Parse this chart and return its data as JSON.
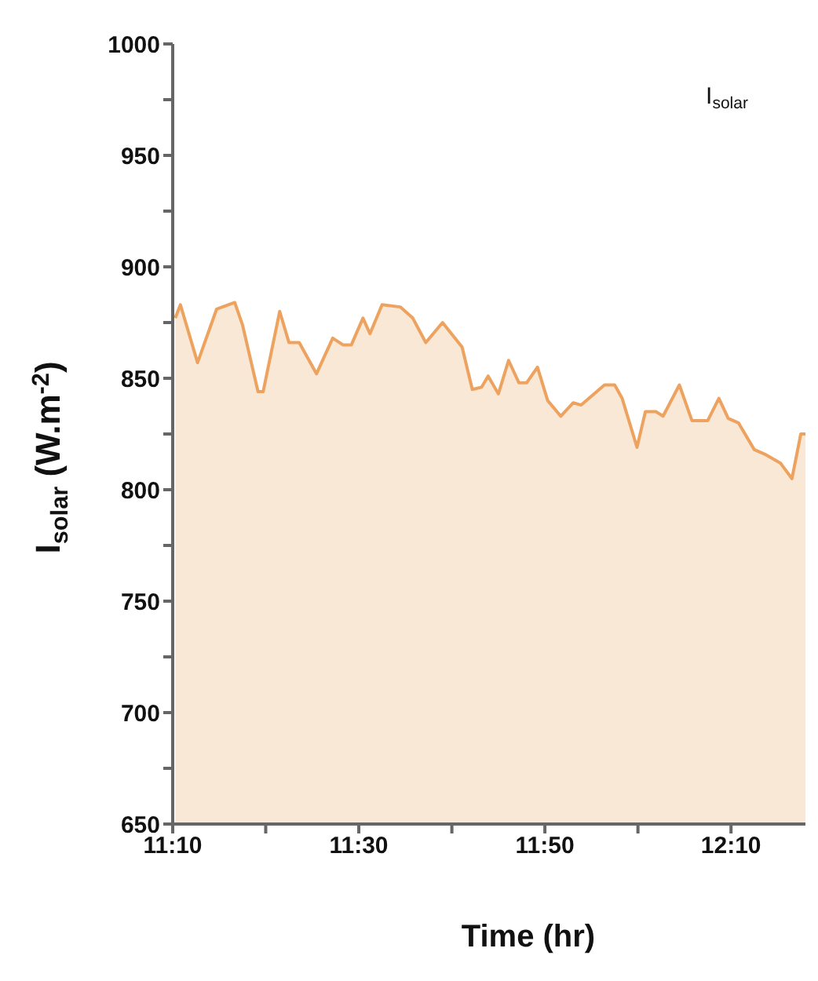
{
  "chart_data": {
    "type": "area",
    "xlabel": "Time (hr)",
    "ylabel": "I$_{solar}$ (W.m$^{-2}$)",
    "annotations": [
      "I$_{solar}$"
    ],
    "xlim": [
      11.1667,
      12.3
    ],
    "xticks": [
      {
        "value": 11.1667,
        "label": "11:10"
      },
      {
        "value": 11.3333,
        "label": null
      },
      {
        "value": 11.5,
        "label": "11:30"
      },
      {
        "value": 11.6667,
        "label": null
      },
      {
        "value": 11.8333,
        "label": "11:50"
      },
      {
        "value": 12.0,
        "label": null
      },
      {
        "value": 12.1667,
        "label": "12:10"
      }
    ],
    "ylim": [
      650,
      1000
    ],
    "yticks": [
      650,
      {
        "value": 675,
        "label": null
      },
      700,
      {
        "value": 725,
        "label": null
      },
      750,
      {
        "value": 775,
        "label": null
      },
      800,
      {
        "value": 825,
        "label": null
      },
      850,
      {
        "value": 875,
        "label": null
      },
      900,
      {
        "value": 925,
        "label": null
      },
      950,
      {
        "value": 975,
        "label": null
      },
      1000
    ],
    "x": [
      11.1713,
      11.1805,
      11.2112,
      11.2453,
      11.2778,
      11.2917,
      11.3195,
      11.3287,
      11.3583,
      11.375,
      11.3933,
      11.4242,
      11.4533,
      11.4717,
      11.4867,
      11.5075,
      11.52,
      11.5417,
      11.5742,
      11.5967,
      11.62,
      11.65,
      11.685,
      11.7033,
      11.72,
      11.7317,
      11.75,
      11.7683,
      11.7867,
      11.8008,
      11.82,
      11.8383,
      11.8617,
      11.8842,
      11.8983,
      11.94,
      11.9583,
      11.9717,
      11.9983,
      12.0133,
      12.0325,
      12.045,
      12.0742,
      12.0967,
      12.125,
      12.145,
      12.1617,
      12.18,
      12.2083,
      12.2267,
      12.255,
      12.2758,
      12.2917,
      12.3
    ],
    "series": [
      {
        "color": "#eda35f",
        "values": [
          877,
          883,
          857,
          881,
          884,
          874,
          844,
          844,
          880,
          866,
          866,
          852,
          868,
          865,
          865,
          877,
          870,
          883,
          882,
          877,
          866,
          875,
          864,
          845,
          846,
          851,
          843,
          858,
          848,
          848,
          855,
          840,
          833,
          839,
          838,
          847,
          847,
          841,
          819,
          835,
          835,
          833,
          847,
          831,
          831,
          841,
          832,
          830,
          818,
          816,
          812,
          805,
          825,
          825
        ]
      }
    ]
  }
}
